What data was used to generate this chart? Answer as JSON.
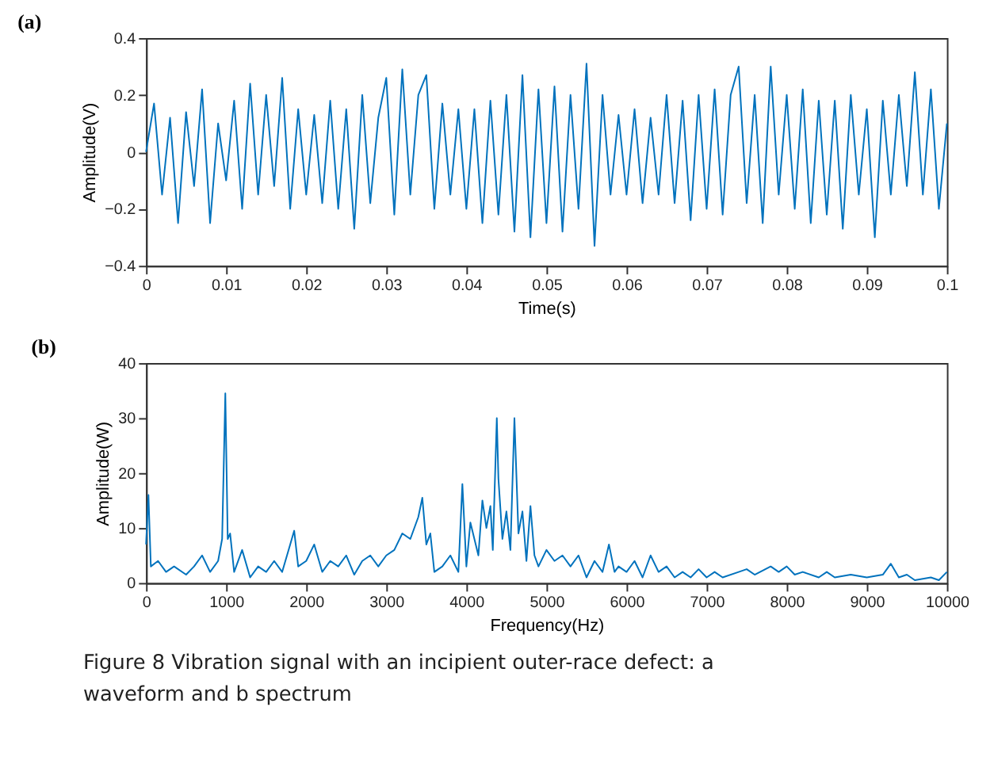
{
  "chart_data": [
    {
      "type": "line",
      "title": "(a)",
      "xlabel": "Time(s)",
      "ylabel": "Amplitude(V)",
      "xlim": [
        0,
        0.1
      ],
      "ylim": [
        -0.4,
        0.4
      ],
      "xticks": [
        0,
        0.01,
        0.02,
        0.03,
        0.04,
        0.05,
        0.06,
        0.07,
        0.08,
        0.09,
        0.1
      ],
      "yticks": [
        -0.4,
        -0.2,
        0,
        0.2,
        0.4
      ],
      "grid": false,
      "x": [
        0,
        0.001,
        0.002,
        0.003,
        0.004,
        0.005,
        0.006,
        0.007,
        0.008,
        0.009,
        0.01,
        0.011,
        0.012,
        0.013,
        0.014,
        0.015,
        0.016,
        0.017,
        0.018,
        0.019,
        0.02,
        0.021,
        0.022,
        0.023,
        0.024,
        0.025,
        0.026,
        0.027,
        0.028,
        0.029,
        0.03,
        0.031,
        0.032,
        0.033,
        0.034,
        0.035,
        0.036,
        0.037,
        0.038,
        0.039,
        0.04,
        0.041,
        0.042,
        0.043,
        0.044,
        0.045,
        0.046,
        0.047,
        0.048,
        0.049,
        0.05,
        0.051,
        0.052,
        0.053,
        0.054,
        0.055,
        0.056,
        0.057,
        0.058,
        0.059,
        0.06,
        0.061,
        0.062,
        0.063,
        0.064,
        0.065,
        0.066,
        0.067,
        0.068,
        0.069,
        0.07,
        0.071,
        0.072,
        0.073,
        0.074,
        0.075,
        0.076,
        0.077,
        0.078,
        0.079,
        0.08,
        0.081,
        0.082,
        0.083,
        0.084,
        0.085,
        0.086,
        0.087,
        0.088,
        0.089,
        0.09,
        0.091,
        0.092,
        0.093,
        0.094,
        0.095,
        0.096,
        0.097,
        0.098,
        0.099,
        0.1
      ],
      "series": [
        {
          "color": "#0072bd",
          "values": [
            0.0,
            0.17,
            -0.15,
            0.12,
            -0.25,
            0.14,
            -0.12,
            0.22,
            -0.25,
            0.1,
            -0.1,
            0.18,
            -0.2,
            0.24,
            -0.15,
            0.2,
            -0.12,
            0.26,
            -0.2,
            0.15,
            -0.15,
            0.13,
            -0.18,
            0.18,
            -0.2,
            0.15,
            -0.27,
            0.2,
            -0.18,
            0.12,
            0.26,
            -0.22,
            0.29,
            -0.15,
            0.2,
            0.27,
            -0.2,
            0.17,
            -0.15,
            0.15,
            -0.2,
            0.15,
            -0.25,
            0.18,
            -0.22,
            0.2,
            -0.28,
            0.27,
            -0.3,
            0.22,
            -0.25,
            0.23,
            -0.28,
            0.2,
            -0.2,
            0.31,
            -0.33,
            0.2,
            -0.15,
            0.13,
            -0.15,
            0.15,
            -0.18,
            0.12,
            -0.15,
            0.2,
            -0.18,
            0.18,
            -0.24,
            0.2,
            -0.2,
            0.22,
            -0.22,
            0.2,
            0.3,
            -0.18,
            0.2,
            -0.25,
            0.3,
            -0.15,
            0.2,
            -0.2,
            0.22,
            -0.25,
            0.18,
            -0.22,
            0.18,
            -0.27,
            0.2,
            -0.15,
            0.15,
            -0.3,
            0.18,
            -0.15,
            0.2,
            -0.12,
            0.28,
            -0.15,
            0.22,
            -0.2,
            0.1
          ]
        }
      ]
    },
    {
      "type": "line",
      "title": "(b)",
      "xlabel": "Frequency(Hz)",
      "ylabel": "Amplitude(W)",
      "xlim": [
        0,
        10000
      ],
      "ylim": [
        0,
        40
      ],
      "xticks": [
        0,
        1000,
        2000,
        3000,
        4000,
        5000,
        6000,
        7000,
        8000,
        9000,
        10000
      ],
      "yticks": [
        0,
        10,
        20,
        30,
        40
      ],
      "grid": false,
      "annotations": [
        "Figure 8  Vibration signal with an incipient outer-race defect: a waveform and b spectrum"
      ],
      "x": [
        0,
        30,
        60,
        150,
        250,
        350,
        500,
        600,
        700,
        800,
        900,
        950,
        990,
        1020,
        1050,
        1100,
        1200,
        1300,
        1400,
        1500,
        1600,
        1700,
        1800,
        1850,
        1900,
        2000,
        2100,
        2200,
        2300,
        2400,
        2500,
        2600,
        2700,
        2800,
        2900,
        3000,
        3100,
        3200,
        3300,
        3400,
        3450,
        3500,
        3550,
        3600,
        3700,
        3800,
        3900,
        3950,
        4000,
        4050,
        4150,
        4200,
        4250,
        4300,
        4330,
        4380,
        4400,
        4450,
        4500,
        4550,
        4600,
        4650,
        4700,
        4750,
        4800,
        4850,
        4900,
        5000,
        5100,
        5200,
        5300,
        5400,
        5500,
        5600,
        5700,
        5780,
        5850,
        5900,
        6000,
        6100,
        6200,
        6300,
        6400,
        6500,
        6600,
        6700,
        6800,
        6900,
        7000,
        7100,
        7200,
        7400,
        7500,
        7600,
        7800,
        7900,
        8000,
        8100,
        8200,
        8400,
        8500,
        8600,
        8800,
        9000,
        9200,
        9300,
        9400,
        9500,
        9600,
        9800,
        9900,
        10000
      ],
      "series": [
        {
          "color": "#0072bd",
          "values": [
            7,
            16,
            3,
            4,
            2,
            3,
            1.5,
            3,
            5,
            2,
            4,
            8,
            34.5,
            8,
            9,
            2,
            6,
            1,
            3,
            2,
            4,
            2,
            7,
            9.5,
            3,
            4,
            7,
            2,
            4,
            3,
            5,
            1.5,
            4,
            5,
            3,
            5,
            6,
            9,
            8,
            12,
            15.5,
            7,
            9,
            2,
            3,
            5,
            2,
            18,
            3,
            11,
            5,
            15,
            10,
            14,
            6,
            30,
            19,
            8,
            13,
            6,
            30,
            9,
            13,
            4,
            14,
            5,
            3,
            6,
            4,
            5,
            3,
            5,
            1,
            4,
            2,
            7,
            2,
            3,
            2,
            4,
            1,
            5,
            2,
            3,
            1,
            2,
            1,
            2.5,
            1,
            2,
            1,
            2,
            2.5,
            1.5,
            3,
            2,
            3,
            1.5,
            2,
            1,
            2,
            1,
            1.5,
            1,
            1.5,
            3.5,
            1,
            1.5,
            0.5,
            1,
            0.5,
            2
          ]
        }
      ]
    }
  ]
}
